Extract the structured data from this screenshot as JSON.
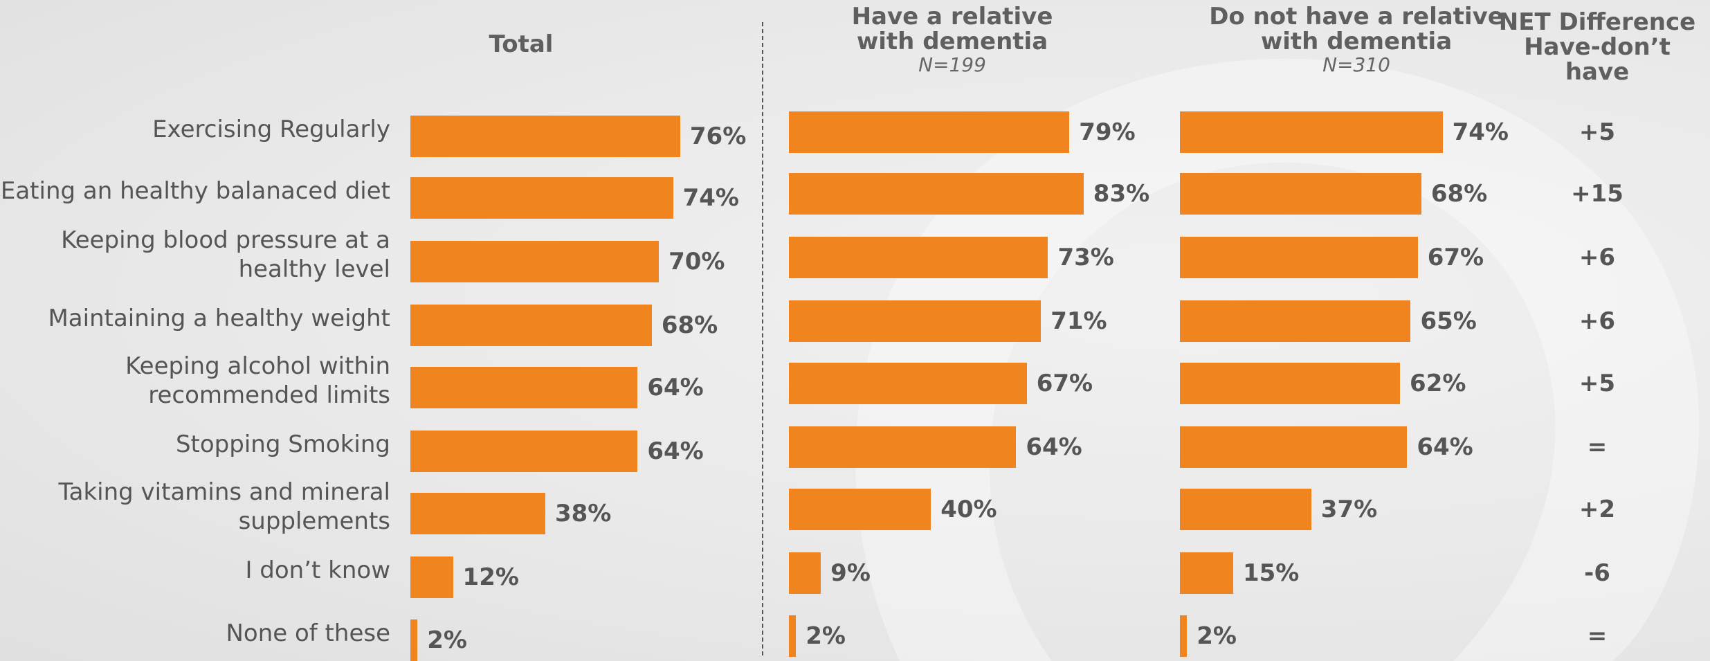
{
  "chart_data": {
    "type": "bar",
    "orientation": "horizontal",
    "categories": [
      "Exercising Regularly",
      "Eating an healthy balanaced diet",
      "Keeping blood pressure at a healthy level",
      "Maintaining a healthy weight",
      "Keeping alcohol within recommended limits",
      "Stopping Smoking",
      "Taking vitamins and mineral supplements",
      "I don’t know",
      "None of these"
    ],
    "category_lines": [
      [
        "Exercising Regularly"
      ],
      [
        "Eating an healthy balanaced diet"
      ],
      [
        "Keeping blood pressure at a",
        "healthy level"
      ],
      [
        "Maintaining a healthy weight"
      ],
      [
        "Keeping alcohol within",
        "recommended limits"
      ],
      [
        "Stopping Smoking"
      ],
      [
        "Taking vitamins and mineral",
        "supplements"
      ],
      [
        "I don’t know"
      ],
      [
        "None of these"
      ]
    ],
    "series": [
      {
        "name": "Total",
        "header_lines": [
          "Total"
        ],
        "subtitle": "",
        "values": [
          76,
          74,
          70,
          68,
          64,
          64,
          38,
          12,
          2
        ],
        "labels": [
          "76%",
          "74%",
          "70%",
          "68%",
          "64%",
          "64%",
          "38%",
          "12%",
          "2%"
        ]
      },
      {
        "name": "Have a relative with dementia",
        "header_lines": [
          "Have a relative",
          "with dementia"
        ],
        "subtitle": "N=199",
        "values": [
          79,
          83,
          73,
          71,
          67,
          64,
          40,
          9,
          2
        ],
        "labels": [
          "79%",
          "83%",
          "73%",
          "71%",
          "67%",
          "64%",
          "40%",
          "9%",
          "2%"
        ]
      },
      {
        "name": "Do not have a relative with dementia",
        "header_lines": [
          "Do not have a relative",
          "with dementia"
        ],
        "subtitle": "N=310",
        "values": [
          74,
          68,
          67,
          65,
          62,
          64,
          37,
          15,
          2
        ],
        "labels": [
          "74%",
          "68%",
          "67%",
          "65%",
          "62%",
          "64%",
          "37%",
          "15%",
          "2%"
        ]
      }
    ],
    "net_difference": {
      "header_lines": [
        "NET Difference",
        "Have-don’t",
        "have"
      ],
      "values": [
        "+5",
        "+15",
        "+6",
        "+6",
        "+5",
        "=",
        "+2",
        "-6",
        "="
      ]
    },
    "bar_color": "#f0851f",
    "xlim": [
      0,
      100
    ],
    "grid": false
  }
}
